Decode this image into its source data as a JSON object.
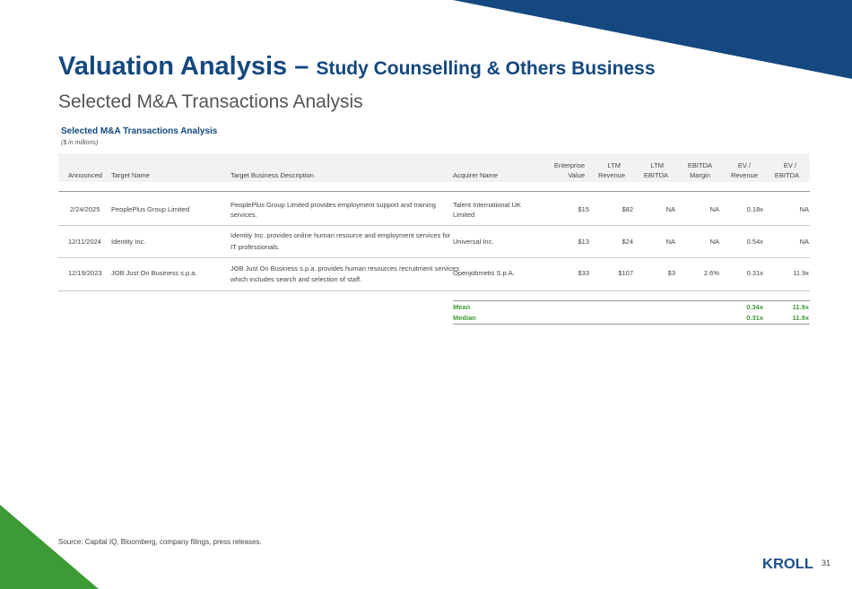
{
  "title": {
    "main": "Valuation Analysis – ",
    "sub": "Study Counselling & Others Business"
  },
  "subtitle": "Selected M&A Transactions Analysis",
  "table": {
    "title": "Selected M&A Transactions Analysis",
    "unit_note": "($ in millions)",
    "headers": {
      "announced": "Announced",
      "target_name": "Target Name",
      "target_desc": "Target Business Description",
      "acquirer": "Acquirer Name",
      "ev_1": "Enterprise",
      "ev_2": "Value",
      "ltm_rev_1": "LTM",
      "ltm_rev_2": "Revenue",
      "ltm_ebitda_1": "LTM",
      "ltm_ebitda_2": "EBITDA",
      "margin_1": "EBITDA",
      "margin_2": "Margin",
      "ev_rev_1": "EV /",
      "ev_rev_2": "Revenue",
      "ev_ebitda_1": "EV /",
      "ev_ebitda_2": "EBITDA"
    },
    "rows": [
      {
        "announced": "2/24/2025",
        "target_name": "PeoplePlus Group Limited",
        "desc_1": "PeoplePlus Group Limited provides employment support and training",
        "desc_2": "services.",
        "acq_1": "Talent International UK",
        "acq_2": "Limited",
        "ev": "$15",
        "ltm_rev": "$82",
        "ltm_ebitda": "NA",
        "margin": "NA",
        "ev_rev": "0.18x",
        "ev_ebitda": "NA"
      },
      {
        "announced": "12/11/2024",
        "target_name": "Identity Inc.",
        "desc_1": "Identity Inc. provides online human resource and employment services for",
        "desc_2": "IT professionals.",
        "acq_1": "Universal Inc.",
        "acq_2": "",
        "ev": "$13",
        "ltm_rev": "$24",
        "ltm_ebitda": "NA",
        "margin": "NA",
        "ev_rev": "0.54x",
        "ev_ebitda": "NA"
      },
      {
        "announced": "12/19/2023",
        "target_name": "JOB Just On Business s.p.a.",
        "desc_1": "JOB Just On Business s.p.a. provides human resources recruitment services",
        "desc_2": "which includes search and selection of staff.",
        "acq_1": "Openjobmetis S.p.A.",
        "acq_2": "",
        "ev": "$33",
        "ltm_rev": "$107",
        "ltm_ebitda": "$3",
        "margin": "2.6%",
        "ev_rev": "0.31x",
        "ev_ebitda": "11.9x"
      }
    ],
    "summary": [
      {
        "label": "Mean",
        "ev_rev": "0.34x",
        "ev_ebitda": "11.9x"
      },
      {
        "label": "Median",
        "ev_rev": "0.31x",
        "ev_ebitda": "11.9x"
      }
    ]
  },
  "footer": {
    "source": "Source: Capital IQ, Bloomberg, company filings, press releases.",
    "logo_text": "KROLL",
    "page_number": "31"
  },
  "colors": {
    "navy": "#14487f",
    "green": "#3d9b35",
    "logo_blue": "#1e4e8c"
  }
}
